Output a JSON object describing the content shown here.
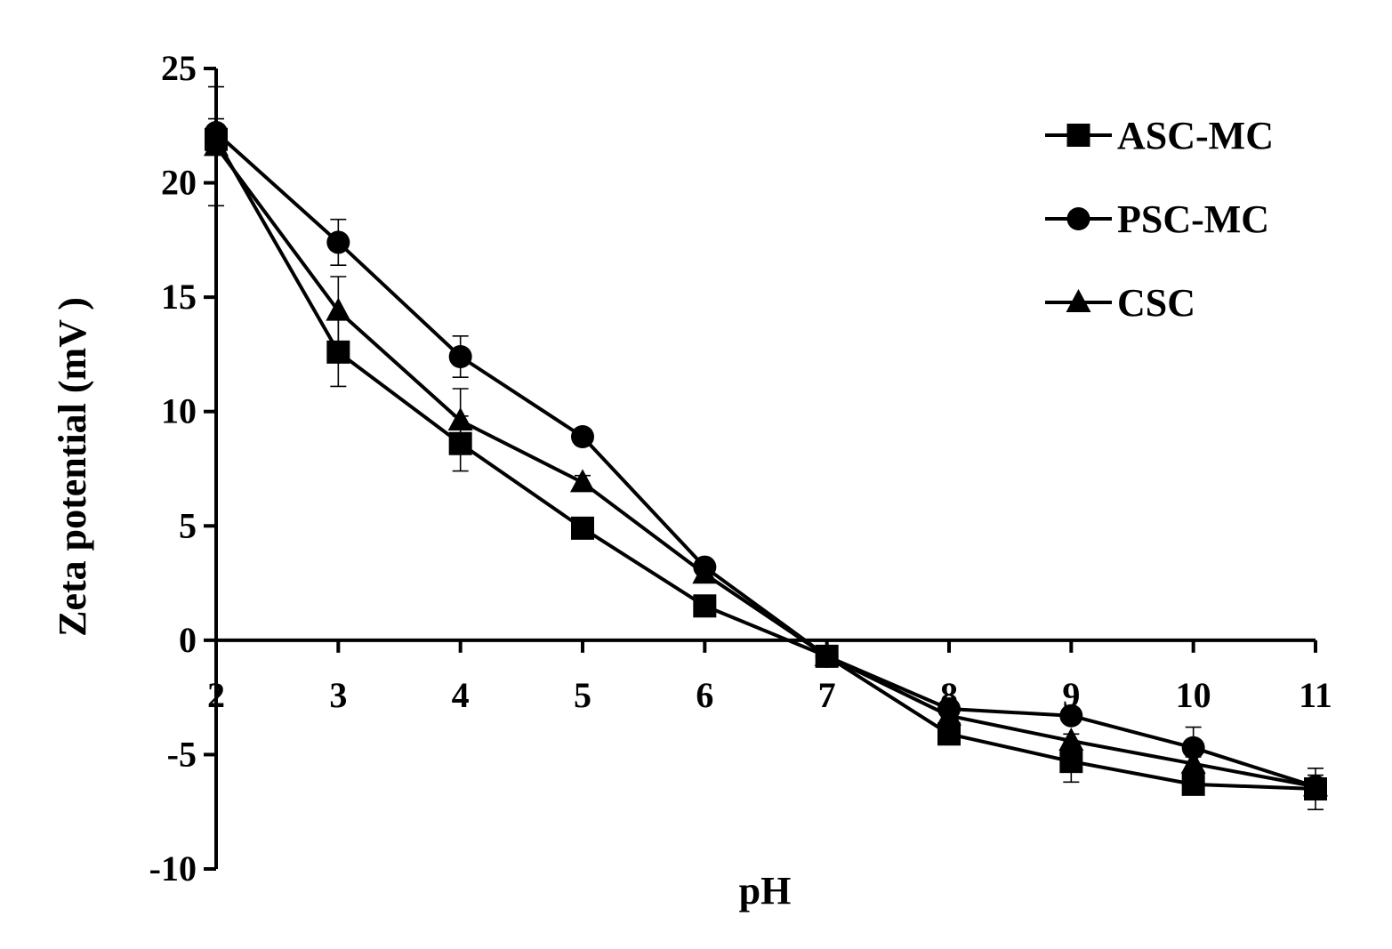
{
  "chart_data": {
    "type": "line",
    "xlabel": "pH",
    "ylabel": "Zeta potential (mV )",
    "x": [
      2,
      3,
      4,
      5,
      6,
      7,
      8,
      9,
      10,
      11
    ],
    "xlim": [
      2,
      11
    ],
    "ylim": [
      -10,
      25
    ],
    "yticks": [
      25,
      20,
      15,
      10,
      5,
      0,
      -5,
      -10
    ],
    "legend_position": "top-right",
    "series": [
      {
        "name": "ASC-MC",
        "marker": "square",
        "values": [
          21.9,
          12.6,
          8.6,
          4.9,
          1.5,
          -0.7,
          -4.1,
          -5.3,
          -6.3,
          -6.5
        ],
        "errors": [
          0.6,
          1.5,
          1.2,
          0.3,
          0.3,
          0.3,
          0.3,
          0.9,
          0.3,
          0.9
        ]
      },
      {
        "name": "PSC-MC",
        "marker": "circle",
        "values": [
          22.2,
          17.4,
          12.4,
          8.9,
          3.2,
          -0.7,
          -3.0,
          -3.3,
          -4.7,
          -6.4
        ],
        "errors": [
          0.6,
          1.0,
          0.9,
          0.3,
          0.3,
          0.3,
          0.3,
          0.3,
          0.9,
          0.3
        ]
      },
      {
        "name": "CSC",
        "marker": "triangle",
        "values": [
          21.6,
          14.4,
          9.6,
          6.9,
          2.9,
          -0.7,
          -3.3,
          -4.4,
          -5.4,
          -6.4
        ],
        "errors": [
          2.6,
          1.5,
          1.4,
          0.3,
          0.3,
          0.3,
          0.3,
          0.3,
          0.3,
          0.5
        ]
      }
    ]
  }
}
